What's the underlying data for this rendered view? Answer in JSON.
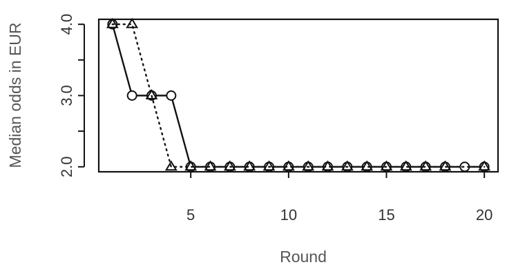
{
  "chart_data": {
    "type": "line",
    "xlabel": "Round",
    "ylabel": "Median odds in EUR",
    "xlim": [
      0.3,
      20.7
    ],
    "ylim": [
      1.93,
      4.07
    ],
    "x_ticks": [
      {
        "value": 5,
        "label": "5"
      },
      {
        "value": 10,
        "label": "10"
      },
      {
        "value": 15,
        "label": "15"
      },
      {
        "value": 20,
        "label": "20"
      }
    ],
    "x_minor_ticks": [],
    "y_ticks": [
      {
        "value": 2.0,
        "label": "2.0"
      },
      {
        "value": 3.0,
        "label": "3.0"
      },
      {
        "value": 4.0,
        "label": "4.0"
      }
    ],
    "y_minor_ticks": [
      2.5,
      3.5
    ],
    "grid": false,
    "legend": null,
    "series": [
      {
        "line": "solid",
        "marker": "circle",
        "color": "#111111",
        "x": [
          1,
          2,
          3,
          4,
          5,
          6,
          7,
          8,
          9,
          10,
          11,
          12,
          13,
          14,
          15,
          16,
          17,
          18,
          19,
          20
        ],
        "y": [
          4.0,
          3.0,
          3.0,
          3.0,
          2.0,
          2.0,
          2.0,
          2.0,
          2.0,
          2.0,
          2.0,
          2.0,
          2.0,
          2.0,
          2.0,
          2.0,
          2.0,
          2.0,
          2.0,
          2.0
        ]
      },
      {
        "line": "dotted",
        "marker": "triangle",
        "color": "#111111",
        "x": [
          1,
          2,
          3,
          4,
          5,
          6,
          7,
          8,
          9,
          10,
          11,
          12,
          13,
          14,
          15,
          16,
          17,
          18,
          20
        ],
        "y": [
          4.0,
          4.0,
          3.0,
          2.0,
          2.0,
          2.0,
          2.0,
          2.0,
          2.0,
          2.0,
          2.0,
          2.0,
          2.0,
          2.0,
          2.0,
          2.0,
          2.0,
          2.0,
          2.0
        ]
      }
    ]
  }
}
